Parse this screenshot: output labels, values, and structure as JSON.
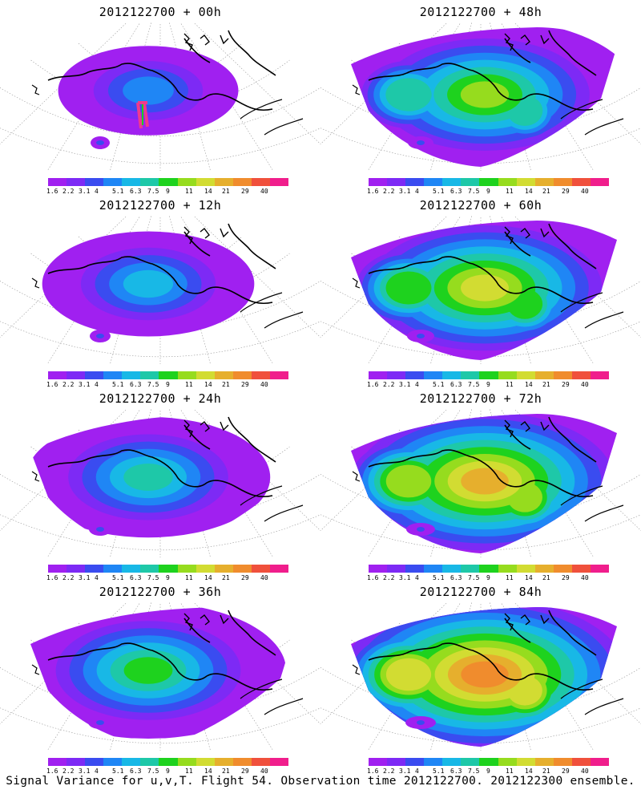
{
  "panels": [
    {
      "title": "2012122700 + 00h",
      "stage": 0,
      "hotspot": true
    },
    {
      "title": "2012122700 + 48h",
      "stage": 4
    },
    {
      "title": "2012122700 + 12h",
      "stage": 1
    },
    {
      "title": "2012122700 + 60h",
      "stage": 5
    },
    {
      "title": "2012122700 + 24h",
      "stage": 2
    },
    {
      "title": "2012122700 + 72h",
      "stage": 6
    },
    {
      "title": "2012122700 + 36h",
      "stage": 3
    },
    {
      "title": "2012122700 + 84h",
      "stage": 7
    }
  ],
  "colorbar": {
    "colors": [
      "#a020f0",
      "#7d2af5",
      "#3a4cf0",
      "#1f86f5",
      "#18b8e6",
      "#1ec8a8",
      "#1ed21e",
      "#96dc1e",
      "#d2dc32",
      "#e6af2d",
      "#f08c2d",
      "#f0503c",
      "#f01e8c"
    ],
    "labels": [
      "1.6",
      "2.2",
      "3.1",
      "4",
      "5.1",
      "6.3",
      "7.5",
      "9",
      "11",
      "14",
      "21",
      "29",
      "40"
    ]
  },
  "footer": "Signal Variance for u,v,T. Flight 54. Observation time 2012122700. 2012122300 ensemble."
}
